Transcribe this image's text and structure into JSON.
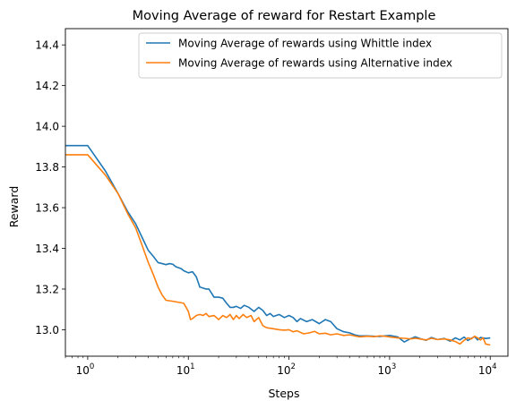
{
  "chart_data": {
    "type": "line",
    "title": "Moving Average of reward for Restart Example",
    "xlabel": "Steps",
    "ylabel": "Reward",
    "xscale": "log",
    "xlim": [
      0.6,
      15000
    ],
    "ylim": [
      12.87,
      14.48
    ],
    "xticks": [
      {
        "value": 1,
        "base": "10",
        "exp": "0"
      },
      {
        "value": 10,
        "base": "10",
        "exp": "1"
      },
      {
        "value": 100,
        "base": "10",
        "exp": "2"
      },
      {
        "value": 1000,
        "base": "10",
        "exp": "3"
      },
      {
        "value": 10000,
        "base": "10",
        "exp": "4"
      }
    ],
    "yticks": [
      {
        "value": 13.0,
        "label": "13.0"
      },
      {
        "value": 13.2,
        "label": "13.2"
      },
      {
        "value": 13.4,
        "label": "13.4"
      },
      {
        "value": 13.6,
        "label": "13.6"
      },
      {
        "value": 13.8,
        "label": "13.8"
      },
      {
        "value": 14.0,
        "label": "14.0"
      },
      {
        "value": 14.2,
        "label": "14.2"
      },
      {
        "value": 14.4,
        "label": "14.4"
      }
    ],
    "grid": false,
    "legend_position": "top-right",
    "series": [
      {
        "name": "Moving Average of rewards using Whittle index",
        "color": "#1f77b4",
        "points": [
          [
            0.6,
            13.905
          ],
          [
            1.0,
            13.905
          ],
          [
            1.5,
            13.78
          ],
          [
            2.0,
            13.67
          ],
          [
            2.5,
            13.58
          ],
          [
            3.0,
            13.52
          ],
          [
            3.5,
            13.45
          ],
          [
            4.0,
            13.39
          ],
          [
            4.5,
            13.36
          ],
          [
            5.0,
            13.33
          ],
          [
            5.5,
            13.325
          ],
          [
            6.0,
            13.32
          ],
          [
            6.5,
            13.325
          ],
          [
            7.0,
            13.322
          ],
          [
            7.5,
            13.31
          ],
          [
            8.0,
            13.305
          ],
          [
            8.5,
            13.3
          ],
          [
            9.0,
            13.29
          ],
          [
            10.0,
            13.28
          ],
          [
            11.0,
            13.285
          ],
          [
            12.0,
            13.26
          ],
          [
            13.0,
            13.21
          ],
          [
            14.0,
            13.205
          ],
          [
            15.0,
            13.2
          ],
          [
            16.0,
            13.2
          ],
          [
            17.0,
            13.18
          ],
          [
            18.0,
            13.16
          ],
          [
            20.0,
            13.16
          ],
          [
            22.0,
            13.155
          ],
          [
            24.0,
            13.13
          ],
          [
            26.0,
            13.11
          ],
          [
            28.0,
            13.11
          ],
          [
            30.0,
            13.115
          ],
          [
            33.0,
            13.105
          ],
          [
            36.0,
            13.12
          ],
          [
            40.0,
            13.11
          ],
          [
            45.0,
            13.09
          ],
          [
            50.0,
            13.11
          ],
          [
            55.0,
            13.095
          ],
          [
            60.0,
            13.07
          ],
          [
            65.0,
            13.08
          ],
          [
            70.0,
            13.065
          ],
          [
            80.0,
            13.075
          ],
          [
            90.0,
            13.06
          ],
          [
            100.0,
            13.07
          ],
          [
            110.0,
            13.06
          ],
          [
            120.0,
            13.04
          ],
          [
            130.0,
            13.055
          ],
          [
            150.0,
            13.04
          ],
          [
            170.0,
            13.05
          ],
          [
            200.0,
            13.03
          ],
          [
            230.0,
            13.05
          ],
          [
            260.0,
            13.04
          ],
          [
            300.0,
            13.005
          ],
          [
            350.0,
            12.99
          ],
          [
            400.0,
            12.985
          ],
          [
            450.0,
            12.975
          ],
          [
            500.0,
            12.97
          ],
          [
            600.0,
            12.97
          ],
          [
            700.0,
            12.968
          ],
          [
            800.0,
            12.967
          ],
          [
            900.0,
            12.97
          ],
          [
            1000.0,
            12.972
          ],
          [
            1200.0,
            12.965
          ],
          [
            1400.0,
            12.94
          ],
          [
            1600.0,
            12.955
          ],
          [
            1800.0,
            12.965
          ],
          [
            2000.0,
            12.957
          ],
          [
            2300.0,
            12.948
          ],
          [
            2600.0,
            12.962
          ],
          [
            3000.0,
            12.952
          ],
          [
            3500.0,
            12.957
          ],
          [
            4000.0,
            12.944
          ],
          [
            4500.0,
            12.96
          ],
          [
            5000.0,
            12.95
          ],
          [
            5500.0,
            12.964
          ],
          [
            6000.0,
            12.947
          ],
          [
            6500.0,
            12.958
          ],
          [
            7000.0,
            12.966
          ],
          [
            7500.0,
            12.95
          ],
          [
            8000.0,
            12.962
          ],
          [
            9000.0,
            12.957
          ],
          [
            10000.0,
            12.96
          ]
        ]
      },
      {
        "name": "Moving Average of rewards using Alternative index",
        "color": "#ff7f0e",
        "points": [
          [
            0.6,
            13.86
          ],
          [
            1.0,
            13.86
          ],
          [
            1.5,
            13.76
          ],
          [
            2.0,
            13.67
          ],
          [
            2.5,
            13.57
          ],
          [
            3.0,
            13.5
          ],
          [
            3.5,
            13.41
          ],
          [
            4.0,
            13.33
          ],
          [
            4.5,
            13.27
          ],
          [
            5.0,
            13.21
          ],
          [
            5.5,
            13.17
          ],
          [
            6.0,
            13.145
          ],
          [
            7.0,
            13.14
          ],
          [
            8.0,
            13.135
          ],
          [
            9.0,
            13.13
          ],
          [
            9.5,
            13.11
          ],
          [
            10.0,
            13.09
          ],
          [
            10.5,
            13.05
          ],
          [
            11.0,
            13.055
          ],
          [
            12.0,
            13.07
          ],
          [
            13.0,
            13.075
          ],
          [
            14.0,
            13.07
          ],
          [
            15.0,
            13.08
          ],
          [
            16.0,
            13.065
          ],
          [
            18.0,
            13.07
          ],
          [
            20.0,
            13.05
          ],
          [
            22.0,
            13.07
          ],
          [
            24.0,
            13.06
          ],
          [
            26.0,
            13.075
          ],
          [
            28.0,
            13.05
          ],
          [
            30.0,
            13.07
          ],
          [
            32.0,
            13.055
          ],
          [
            35.0,
            13.075
          ],
          [
            38.0,
            13.06
          ],
          [
            42.0,
            13.07
          ],
          [
            45.0,
            13.04
          ],
          [
            50.0,
            13.06
          ],
          [
            55.0,
            13.02
          ],
          [
            60.0,
            13.01
          ],
          [
            70.0,
            13.005
          ],
          [
            80.0,
            13.0
          ],
          [
            90.0,
            12.998
          ],
          [
            100.0,
            13.0
          ],
          [
            110.0,
            12.99
          ],
          [
            120.0,
            12.995
          ],
          [
            140.0,
            12.98
          ],
          [
            160.0,
            12.985
          ],
          [
            180.0,
            12.992
          ],
          [
            200.0,
            12.98
          ],
          [
            230.0,
            12.983
          ],
          [
            260.0,
            12.975
          ],
          [
            300.0,
            12.98
          ],
          [
            350.0,
            12.972
          ],
          [
            400.0,
            12.975
          ],
          [
            500.0,
            12.965
          ],
          [
            600.0,
            12.968
          ],
          [
            700.0,
            12.966
          ],
          [
            800.0,
            12.97
          ],
          [
            900.0,
            12.968
          ],
          [
            1000.0,
            12.965
          ],
          [
            1200.0,
            12.96
          ],
          [
            1400.0,
            12.958
          ],
          [
            1600.0,
            12.955
          ],
          [
            1800.0,
            12.958
          ],
          [
            2000.0,
            12.955
          ],
          [
            2300.0,
            12.95
          ],
          [
            2600.0,
            12.958
          ],
          [
            3000.0,
            12.952
          ],
          [
            3500.0,
            12.955
          ],
          [
            4000.0,
            12.95
          ],
          [
            4500.0,
            12.942
          ],
          [
            5000.0,
            12.93
          ],
          [
            5500.0,
            12.948
          ],
          [
            6000.0,
            12.96
          ],
          [
            6500.0,
            12.955
          ],
          [
            7000.0,
            12.968
          ],
          [
            7500.0,
            12.96
          ],
          [
            8000.0,
            12.95
          ],
          [
            8500.0,
            12.96
          ],
          [
            9000.0,
            12.93
          ],
          [
            10000.0,
            12.925
          ]
        ]
      }
    ]
  }
}
